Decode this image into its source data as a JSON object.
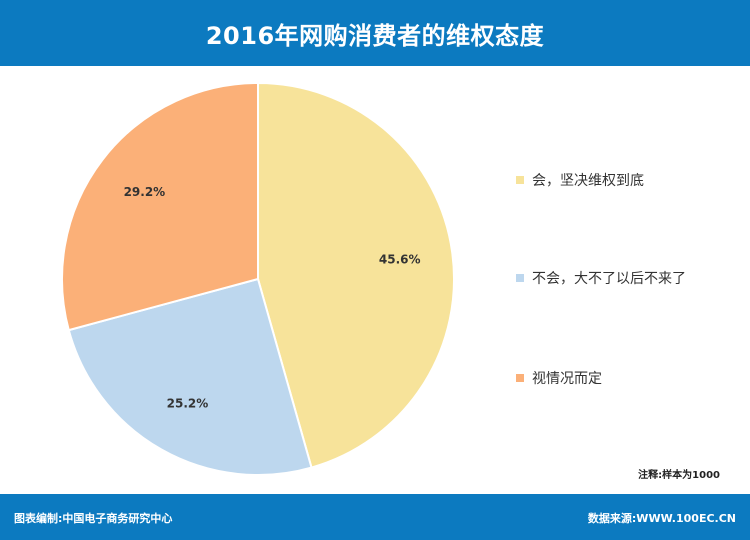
{
  "header": {
    "title": "2016年网购消费者的维权态度"
  },
  "chart_data": {
    "type": "pie",
    "title": "2016年网购消费者的维权态度",
    "slices": [
      {
        "label": "会，坚决维权到底",
        "value": 45.6,
        "display": "45.6%",
        "color": "#f7e39a"
      },
      {
        "label": "不会，大不了以后不来了",
        "value": 25.2,
        "display": "25.2%",
        "color": "#bdd7ee"
      },
      {
        "label": "视情况而定",
        "value": 29.2,
        "display": "29.2%",
        "color": "#fbb078"
      }
    ],
    "start": "12 o'clock",
    "direction": "clockwise",
    "legend_position": "right"
  },
  "note": "注释:样本为1000",
  "footer": {
    "left": "图表编制:中国电子商务研究中心",
    "right": "数据来源:WWW.100EC.CN"
  }
}
